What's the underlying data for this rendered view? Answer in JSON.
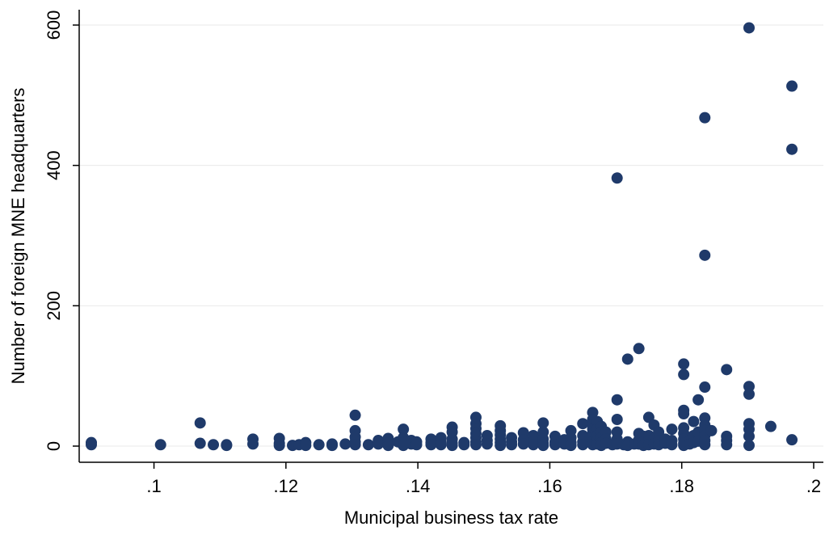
{
  "chart_data": {
    "type": "scatter",
    "title": "",
    "xlabel": "Municipal business tax rate",
    "ylabel": "Number of foreign MNE headquarters",
    "xlim": [
      0.09,
      0.2
    ],
    "ylim": [
      0,
      600
    ],
    "x_ticks": [
      {
        "value": 0.1,
        "label": ".1"
      },
      {
        "value": 0.12,
        "label": ".12"
      },
      {
        "value": 0.14,
        "label": ".14"
      },
      {
        "value": 0.16,
        "label": ".16"
      },
      {
        "value": 0.18,
        "label": ".18"
      },
      {
        "value": 0.2,
        "label": ".2"
      }
    ],
    "y_ticks": [
      {
        "value": 0,
        "label": "0"
      },
      {
        "value": 200,
        "label": "200"
      },
      {
        "value": 400,
        "label": "400"
      },
      {
        "value": 600,
        "label": "600"
      }
    ],
    "grid": "horizontal",
    "legend": "none",
    "marker_color": "#1f3a6a",
    "points": [
      [
        0.0905,
        5
      ],
      [
        0.0905,
        2
      ],
      [
        0.101,
        2
      ],
      [
        0.107,
        33
      ],
      [
        0.107,
        4
      ],
      [
        0.109,
        2
      ],
      [
        0.111,
        1
      ],
      [
        0.111,
        2
      ],
      [
        0.115,
        10
      ],
      [
        0.115,
        3
      ],
      [
        0.119,
        11
      ],
      [
        0.119,
        4
      ],
      [
        0.119,
        1
      ],
      [
        0.121,
        1
      ],
      [
        0.122,
        2
      ],
      [
        0.123,
        5
      ],
      [
        0.123,
        1
      ],
      [
        0.125,
        2
      ],
      [
        0.127,
        3
      ],
      [
        0.127,
        1
      ],
      [
        0.129,
        3
      ],
      [
        0.1305,
        44
      ],
      [
        0.1305,
        22
      ],
      [
        0.1305,
        13
      ],
      [
        0.1305,
        6
      ],
      [
        0.1305,
        2
      ],
      [
        0.1325,
        2
      ],
      [
        0.134,
        8
      ],
      [
        0.134,
        3
      ],
      [
        0.1355,
        11
      ],
      [
        0.1355,
        4
      ],
      [
        0.1355,
        1
      ],
      [
        0.137,
        6
      ],
      [
        0.1378,
        24
      ],
      [
        0.1378,
        12
      ],
      [
        0.1378,
        5
      ],
      [
        0.1378,
        1
      ],
      [
        0.139,
        8
      ],
      [
        0.139,
        3
      ],
      [
        0.1398,
        6
      ],
      [
        0.1398,
        2
      ],
      [
        0.142,
        10
      ],
      [
        0.142,
        5
      ],
      [
        0.142,
        2
      ],
      [
        0.1435,
        12
      ],
      [
        0.1435,
        6
      ],
      [
        0.1435,
        2
      ],
      [
        0.1452,
        27
      ],
      [
        0.1452,
        20
      ],
      [
        0.1452,
        10
      ],
      [
        0.1452,
        4
      ],
      [
        0.1452,
        1
      ],
      [
        0.147,
        5
      ],
      [
        0.147,
        2
      ],
      [
        0.1488,
        41
      ],
      [
        0.1488,
        32
      ],
      [
        0.1488,
        25
      ],
      [
        0.1488,
        18
      ],
      [
        0.1488,
        12
      ],
      [
        0.1488,
        6
      ],
      [
        0.1488,
        2
      ],
      [
        0.1505,
        15
      ],
      [
        0.1505,
        8
      ],
      [
        0.1505,
        3
      ],
      [
        0.1525,
        29
      ],
      [
        0.1525,
        22
      ],
      [
        0.1525,
        16
      ],
      [
        0.1525,
        10
      ],
      [
        0.1525,
        5
      ],
      [
        0.1525,
        1
      ],
      [
        0.1542,
        12
      ],
      [
        0.1542,
        6
      ],
      [
        0.1542,
        2
      ],
      [
        0.156,
        19
      ],
      [
        0.156,
        9
      ],
      [
        0.156,
        3
      ],
      [
        0.1575,
        15
      ],
      [
        0.1575,
        6
      ],
      [
        0.1575,
        2
      ],
      [
        0.159,
        33
      ],
      [
        0.159,
        20
      ],
      [
        0.159,
        10
      ],
      [
        0.159,
        4
      ],
      [
        0.159,
        1
      ],
      [
        0.1608,
        14
      ],
      [
        0.1608,
        6
      ],
      [
        0.1608,
        2
      ],
      [
        0.1622,
        9
      ],
      [
        0.1622,
        3
      ],
      [
        0.1632,
        22
      ],
      [
        0.1632,
        12
      ],
      [
        0.1632,
        5
      ],
      [
        0.1632,
        1
      ],
      [
        0.165,
        32
      ],
      [
        0.165,
        15
      ],
      [
        0.165,
        6
      ],
      [
        0.165,
        2
      ],
      [
        0.1665,
        48
      ],
      [
        0.1665,
        38
      ],
      [
        0.1665,
        30
      ],
      [
        0.1665,
        24
      ],
      [
        0.1665,
        18
      ],
      [
        0.1665,
        12
      ],
      [
        0.1665,
        6
      ],
      [
        0.1665,
        2
      ],
      [
        0.1672,
        35
      ],
      [
        0.1672,
        25
      ],
      [
        0.1672,
        15
      ],
      [
        0.1672,
        8
      ],
      [
        0.1672,
        3
      ],
      [
        0.1678,
        28
      ],
      [
        0.1678,
        20
      ],
      [
        0.1678,
        12
      ],
      [
        0.1678,
        5
      ],
      [
        0.1678,
        1
      ],
      [
        0.1685,
        20
      ],
      [
        0.1685,
        10
      ],
      [
        0.1685,
        4
      ],
      [
        0.1695,
        2
      ],
      [
        0.1702,
        382
      ],
      [
        0.1702,
        66
      ],
      [
        0.1702,
        38
      ],
      [
        0.1702,
        20
      ],
      [
        0.1702,
        10
      ],
      [
        0.1702,
        3
      ],
      [
        0.1712,
        2
      ],
      [
        0.1718,
        124
      ],
      [
        0.1718,
        6
      ],
      [
        0.1718,
        1
      ],
      [
        0.1728,
        3
      ],
      [
        0.1735,
        139
      ],
      [
        0.1735,
        18
      ],
      [
        0.1735,
        9
      ],
      [
        0.1735,
        3
      ],
      [
        0.1742,
        14
      ],
      [
        0.1742,
        6
      ],
      [
        0.1742,
        1
      ],
      [
        0.175,
        41
      ],
      [
        0.175,
        15
      ],
      [
        0.175,
        7
      ],
      [
        0.175,
        2
      ],
      [
        0.1758,
        30
      ],
      [
        0.1758,
        10
      ],
      [
        0.1758,
        3
      ],
      [
        0.1765,
        20
      ],
      [
        0.1765,
        8
      ],
      [
        0.1765,
        2
      ],
      [
        0.1775,
        10
      ],
      [
        0.1775,
        4
      ],
      [
        0.1785,
        24
      ],
      [
        0.1785,
        8
      ],
      [
        0.1785,
        2
      ],
      [
        0.1803,
        117
      ],
      [
        0.1803,
        102
      ],
      [
        0.1803,
        51
      ],
      [
        0.1803,
        46
      ],
      [
        0.1803,
        26
      ],
      [
        0.1803,
        18
      ],
      [
        0.1803,
        10
      ],
      [
        0.1803,
        4
      ],
      [
        0.1803,
        1
      ],
      [
        0.1812,
        8
      ],
      [
        0.1812,
        3
      ],
      [
        0.1818,
        35
      ],
      [
        0.1818,
        15
      ],
      [
        0.1818,
        5
      ],
      [
        0.1825,
        66
      ],
      [
        0.1825,
        20
      ],
      [
        0.1825,
        7
      ],
      [
        0.1835,
        468
      ],
      [
        0.1835,
        272
      ],
      [
        0.1835,
        84
      ],
      [
        0.1835,
        40
      ],
      [
        0.1835,
        30
      ],
      [
        0.1835,
        22
      ],
      [
        0.1835,
        15
      ],
      [
        0.1835,
        8
      ],
      [
        0.1835,
        2
      ],
      [
        0.1845,
        22
      ],
      [
        0.1868,
        109
      ],
      [
        0.1868,
        14
      ],
      [
        0.1868,
        8
      ],
      [
        0.1868,
        2
      ],
      [
        0.1902,
        596
      ],
      [
        0.1902,
        85
      ],
      [
        0.1902,
        74
      ],
      [
        0.1902,
        32
      ],
      [
        0.1902,
        24
      ],
      [
        0.1902,
        14
      ],
      [
        0.1902,
        1
      ],
      [
        0.1935,
        28
      ],
      [
        0.1967,
        513
      ],
      [
        0.1967,
        423
      ],
      [
        0.1967,
        9
      ]
    ]
  }
}
